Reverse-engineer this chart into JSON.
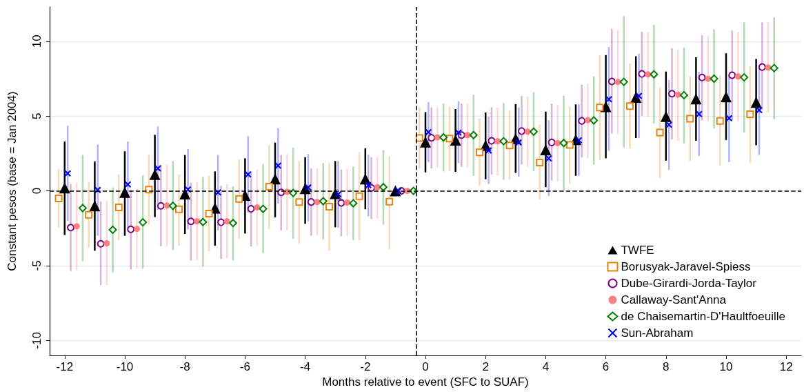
{
  "chart_data": {
    "type": "scatter",
    "xlabel": "Months relative to event (SFC to SUAF)",
    "ylabel": "Constant pesos (base = Jan 2004)",
    "xlim": [
      -12.5,
      12.5
    ],
    "xticks": [
      -12,
      -10,
      -8,
      -6,
      -4,
      -2,
      0,
      2,
      4,
      6,
      8,
      10,
      12
    ],
    "ylim": [
      -11,
      12.3
    ],
    "yticks": [
      -10,
      -5,
      0,
      5,
      10
    ],
    "grid": "y",
    "legend": "bottom right",
    "ref_lines": [
      {
        "axis": "y",
        "value": 0,
        "color": "#000000",
        "line_style": "dashed"
      },
      {
        "axis": "x",
        "value": -0.3,
        "color": "#000000",
        "line_style": "dashed"
      }
    ],
    "series": [
      {
        "name": "TWFE",
        "color": "#000000",
        "marker": "triangle",
        "x": [
          -12,
          -11,
          -10,
          -9,
          -8,
          -7,
          -6,
          -5,
          -4,
          -3,
          -2,
          -1,
          0,
          1,
          2,
          3,
          4,
          5,
          6,
          7,
          8,
          9,
          10,
          11
        ],
        "values": [
          0.2,
          -1.0,
          -0.1,
          1.1,
          -0.2,
          -1.15,
          -0.3,
          0.8,
          0.15,
          -0.18,
          0.8,
          0,
          3.27,
          3.4,
          3.04,
          3.5,
          2.75,
          3.43,
          5.63,
          6.26,
          4.98,
          6.15,
          6.29,
          5.92
        ],
        "errors": [
          [
            -2.95,
            3.3
          ],
          [
            -4.0,
            1.97
          ],
          [
            -3.0,
            2.65
          ],
          [
            -1.75,
            3.75
          ],
          [
            -2.88,
            2.4
          ],
          [
            -3.67,
            1.3
          ],
          [
            -2.85,
            2.18
          ],
          [
            -1.77,
            3.23
          ],
          [
            -2.2,
            2.25
          ],
          [
            -2.43,
            2.0
          ],
          [
            -1.23,
            2.85
          ],
          null,
          [
            1.24,
            5.27
          ],
          [
            1.27,
            5.47
          ],
          [
            0.78,
            5.24
          ],
          [
            1.2,
            5.8
          ],
          [
            0.25,
            5.3
          ],
          [
            1.01,
            5.78
          ],
          [
            2.18,
            9.08
          ],
          [
            3.53,
            9.0
          ],
          [
            2.02,
            7.98
          ],
          [
            3.36,
            8.93
          ],
          [
            3.4,
            9.2
          ],
          [
            3.05,
            8.82
          ]
        ]
      },
      {
        "name": "Borusyak-Jaravel-Spiess",
        "color": "#e8830c",
        "marker": "square",
        "x": [
          -12.2,
          -11.2,
          -10.2,
          -9.2,
          -8.2,
          -7.2,
          -6.2,
          -5.2,
          -4.2,
          -3.2,
          -2.2,
          -1.2,
          -0.2,
          0.8,
          1.8,
          2.8,
          3.8,
          4.8,
          5.8,
          6.8,
          7.8,
          8.8,
          9.8,
          10.8
        ],
        "values": [
          -0.5,
          -1.6,
          -1.1,
          0.08,
          -1.23,
          -1.52,
          -0.54,
          0.28,
          -0.74,
          -1.06,
          -0.35,
          -0.72,
          3.53,
          3.5,
          2.58,
          3.04,
          1.89,
          3.07,
          5.58,
          5.67,
          3.9,
          4.82,
          4.68,
          5.12
        ],
        "errors": [
          [
            -2.45,
            1.45
          ],
          [
            -3.8,
            0.6
          ],
          [
            -3.3,
            1.1
          ],
          [
            -2.26,
            2.4
          ],
          [
            -3.65,
            1.1
          ],
          [
            -4.05,
            1.0
          ],
          [
            -3.2,
            2.1
          ],
          [
            -2.54,
            3.08
          ],
          [
            -3.5,
            2.0
          ],
          [
            -4.0,
            1.85
          ],
          [
            -3.3,
            2.6
          ],
          [
            -3.9,
            2.3
          ],
          [
            1.5,
            5.58
          ],
          [
            1.32,
            5.65
          ],
          [
            0.35,
            4.84
          ],
          [
            0.74,
            5.38
          ],
          [
            -0.57,
            4.42
          ],
          [
            0.5,
            5.65
          ],
          [
            2.06,
            9.08
          ],
          [
            2.84,
            8.51
          ],
          [
            0.87,
            6.93
          ],
          [
            1.98,
            7.67
          ],
          [
            1.69,
            7.7
          ],
          [
            1.87,
            8.34
          ]
        ]
      },
      {
        "name": "Dube-Girardi-Jorda-Taylor",
        "color": "#800080",
        "marker": "circle",
        "x": [
          -11.8,
          -10.8,
          -9.8,
          -8.8,
          -7.8,
          -6.8,
          -5.8,
          -4.8,
          -3.8,
          -2.8,
          -1.8,
          -0.8,
          0.2,
          1.2,
          2.2,
          3.2,
          4.2,
          5.2,
          6.2,
          7.2,
          8.2,
          9.2,
          10.2,
          11.2
        ],
        "values": [
          -2.45,
          -3.54,
          -2.57,
          -1.0,
          -2.04,
          -2.1,
          -1.2,
          -0.1,
          -0.74,
          -0.8,
          0.2,
          0,
          3.55,
          3.73,
          3.35,
          4.0,
          3.24,
          4.68,
          7.32,
          7.82,
          6.5,
          7.58,
          7.73,
          8.28
        ],
        "errors": [
          [
            -5.35,
            0.45
          ],
          [
            -6.3,
            -0.7
          ],
          [
            -5.25,
            0.08
          ],
          [
            -3.7,
            1.75
          ],
          [
            -4.65,
            0.55
          ],
          [
            -4.55,
            0.35
          ],
          [
            -3.72,
            1.32
          ],
          [
            -2.65,
            2.4
          ],
          [
            -3.0,
            1.5
          ],
          [
            -3.03,
            1.43
          ],
          [
            -1.88,
            2.26
          ],
          null,
          [
            1.5,
            5.58
          ],
          [
            1.61,
            5.84
          ],
          [
            1.09,
            5.6
          ],
          [
            1.77,
            6.34
          ],
          [
            0.69,
            5.84
          ],
          [
            2.23,
            7.1
          ],
          [
            3.83,
            10.84
          ],
          [
            5.02,
            10.64
          ],
          [
            3.44,
            9.54
          ],
          [
            4.71,
            10.41
          ],
          [
            4.71,
            10.72
          ],
          [
            5.4,
            11.27
          ]
        ]
      },
      {
        "name": "Callaway-Sant'Anna",
        "color": "#f88080",
        "marker": "circle",
        "x": [
          -11.6,
          -10.6,
          -9.6,
          -8.6,
          -7.6,
          -6.6,
          -5.6,
          -4.6,
          -3.6,
          -2.6,
          -1.6,
          -0.6,
          0.4,
          1.4,
          2.4,
          3.4,
          4.4,
          5.4,
          6.4,
          7.4,
          8.4,
          9.4,
          10.4,
          11.4
        ],
        "values": [
          -2.37,
          -3.5,
          -2.54,
          -0.98,
          -2.03,
          -2.03,
          -1.1,
          -0.06,
          -0.74,
          -0.78,
          0.25,
          0,
          3.58,
          3.73,
          3.32,
          3.96,
          3.2,
          4.73,
          7.29,
          7.79,
          6.43,
          7.5,
          7.65,
          8.25
        ],
        "errors": [
          [
            -5.3,
            0.55
          ],
          [
            -6.3,
            -0.65
          ],
          [
            -5.2,
            0.12
          ],
          [
            -3.7,
            1.75
          ],
          [
            -4.65,
            0.58
          ],
          [
            -4.5,
            0.45
          ],
          [
            -3.68,
            1.43
          ],
          [
            -2.6,
            2.46
          ],
          [
            -3.0,
            1.5
          ],
          [
            -3.03,
            1.48
          ],
          [
            -1.85,
            2.3
          ],
          null,
          [
            1.55,
            5.62
          ],
          [
            1.58,
            5.84
          ],
          [
            1.04,
            5.58
          ],
          [
            1.61,
            6.3
          ],
          [
            0.63,
            5.76
          ],
          [
            2.2,
            7.16
          ],
          [
            3.79,
            10.77
          ],
          [
            4.97,
            10.64
          ],
          [
            3.36,
            9.46
          ],
          [
            4.63,
            10.35
          ],
          [
            4.66,
            10.64
          ],
          [
            5.25,
            11.27
          ]
        ]
      },
      {
        "name": "de Chaisemartin-D'Haultfoeuille",
        "color": "#008000",
        "marker": "diamond",
        "x": [
          -11.4,
          -10.4,
          -9.4,
          -8.4,
          -7.4,
          -6.4,
          -5.4,
          -4.4,
          -3.4,
          -2.4,
          -1.4,
          -0.4,
          0.6,
          1.6,
          2.6,
          3.6,
          4.6,
          5.6,
          6.6,
          7.6,
          8.6,
          9.6,
          10.6,
          11.6
        ],
        "values": [
          -1.15,
          -2.6,
          -2.1,
          -1.0,
          -2.08,
          -2.15,
          -1.2,
          -0.14,
          -0.69,
          -0.83,
          0.25,
          0,
          3.58,
          3.73,
          3.32,
          3.96,
          3.2,
          4.71,
          7.29,
          7.79,
          6.4,
          7.5,
          7.59,
          8.21
        ],
        "errors": [
          [
            -4.7,
            2.4
          ],
          [
            -5.45,
            0.23
          ],
          [
            -5.2,
            1.05
          ],
          [
            -3.95,
            2.0
          ],
          [
            -5.06,
            0.94
          ],
          [
            -4.65,
            0.3
          ],
          [
            -4.16,
            1.8
          ],
          [
            -3.2,
            2.9
          ],
          [
            -3.26,
            1.86
          ],
          [
            -3.3,
            1.63
          ],
          [
            -2.26,
            2.72
          ],
          null,
          [
            1.3,
            5.84
          ],
          [
            1.0,
            6.42
          ],
          [
            0.74,
            5.88
          ],
          [
            1.32,
            6.6
          ],
          [
            0.05,
            6.37
          ],
          [
            1.75,
            7.67
          ],
          [
            2.91,
            11.69
          ],
          [
            4.51,
            11.1
          ],
          [
            3.17,
            9.59
          ],
          [
            4.17,
            10.81
          ],
          [
            3.9,
            11.27
          ],
          [
            4.79,
            11.61
          ]
        ]
      },
      {
        "name": "Sun-Abraham",
        "color": "#0000ff",
        "marker": "cross",
        "x": [
          -11.9,
          -10.9,
          -9.9,
          -8.9,
          -7.9,
          -6.9,
          -5.9,
          -4.9,
          -3.9,
          -2.9,
          -1.9,
          -0.9,
          0.1,
          1.1,
          2.1,
          3.1,
          4.1,
          5.1,
          6.1,
          7.1,
          8.1,
          9.1,
          10.1,
          11.1
        ],
        "values": [
          1.17,
          0.06,
          0.43,
          1.5,
          0.1,
          -0.1,
          1.1,
          1.69,
          0.23,
          -0.23,
          0.38,
          0,
          3.93,
          3.89,
          2.7,
          3.24,
          2.17,
          3.38,
          6.13,
          6.35,
          4.42,
          5.14,
          4.86,
          5.4
        ],
        "errors": [
          [
            -2.0,
            4.35
          ],
          [
            -3.0,
            3.1
          ],
          [
            -2.45,
            3.3
          ],
          [
            -1.28,
            4.3
          ],
          [
            -2.57,
            2.8
          ],
          [
            -2.65,
            2.4
          ],
          [
            -1.46,
            3.66
          ],
          [
            -0.85,
            4.2
          ],
          [
            -2.04,
            2.46
          ],
          [
            -2.46,
            2.0
          ],
          [
            -1.7,
            2.42
          ],
          null,
          [
            1.92,
            5.93
          ],
          [
            1.86,
            6.0
          ],
          [
            0.46,
            4.96
          ],
          [
            0.94,
            5.58
          ],
          [
            -0.34,
            4.73
          ],
          [
            1.0,
            5.8
          ],
          [
            2.67,
            9.62
          ],
          [
            3.53,
            9.16
          ],
          [
            1.41,
            7.42
          ],
          [
            2.33,
            7.96
          ],
          [
            1.92,
            7.7
          ],
          [
            2.41,
            8.28
          ]
        ]
      }
    ]
  }
}
